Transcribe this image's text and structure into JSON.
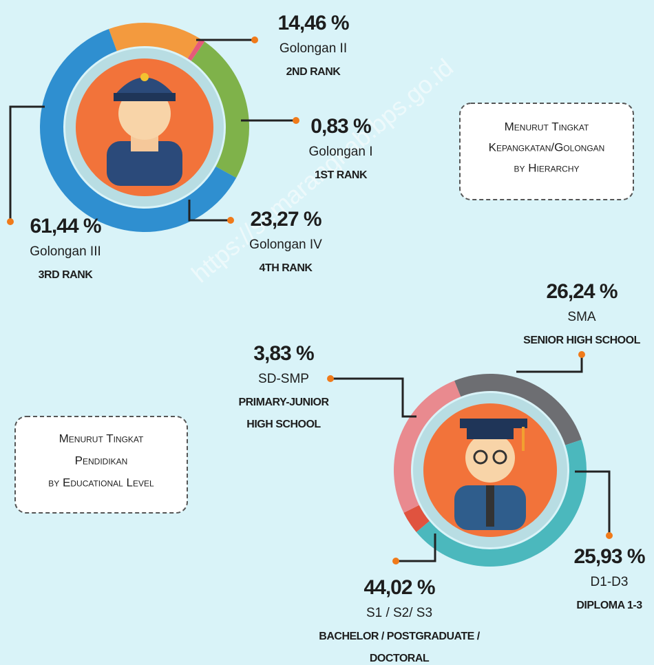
{
  "chart_data": [
    {
      "type": "pie",
      "donut": true,
      "box_lines": [
        "Menurut Tingkat",
        "Kepangkatan/Golongan",
        "by Hierarchy"
      ],
      "categories": [
        "Golongan II",
        "Golongan I",
        "Golongan IV",
        "Golongan III"
      ],
      "descriptions": [
        [
          "2ND RANK"
        ],
        [
          "1ST RANK"
        ],
        [
          "4TH RANK"
        ],
        [
          "3RD RANK"
        ]
      ],
      "values": [
        14.46,
        0.83,
        23.27,
        61.44
      ],
      "value_labels": [
        "14,46 %",
        "0,83 %",
        "23,27 %",
        "61,44 %"
      ],
      "colors": [
        "#f39a3e",
        "#e65a7a",
        "#7fb24a",
        "#2f8fd0"
      ]
    },
    {
      "type": "pie",
      "donut": true,
      "box_lines": [
        "Menurut Tingkat",
        "Pendidikan",
        "by Educational Level"
      ],
      "categories": [
        "SD-SMP",
        "SMA",
        "D1-D3",
        "S1 / S2/ S3"
      ],
      "descriptions": [
        [
          "PRIMARY-JUNIOR",
          "HIGH SCHOOL"
        ],
        [
          "SENIOR HIGH SCHOOL"
        ],
        [
          "DIPLOMA 1-3"
        ],
        [
          "BACHELOR / POSTGRADUATE /",
          "DOCTORAL"
        ]
      ],
      "values": [
        3.83,
        26.24,
        25.93,
        44.02
      ],
      "value_labels": [
        "3,83 %",
        "26,24 %",
        "25,93 %",
        "44,02 %"
      ],
      "colors": [
        "#e0533f",
        "#e98a8f",
        "#6d6e72",
        "#4bb8bd"
      ]
    }
  ],
  "watermark": "https://semarangkab.bps.go.id"
}
